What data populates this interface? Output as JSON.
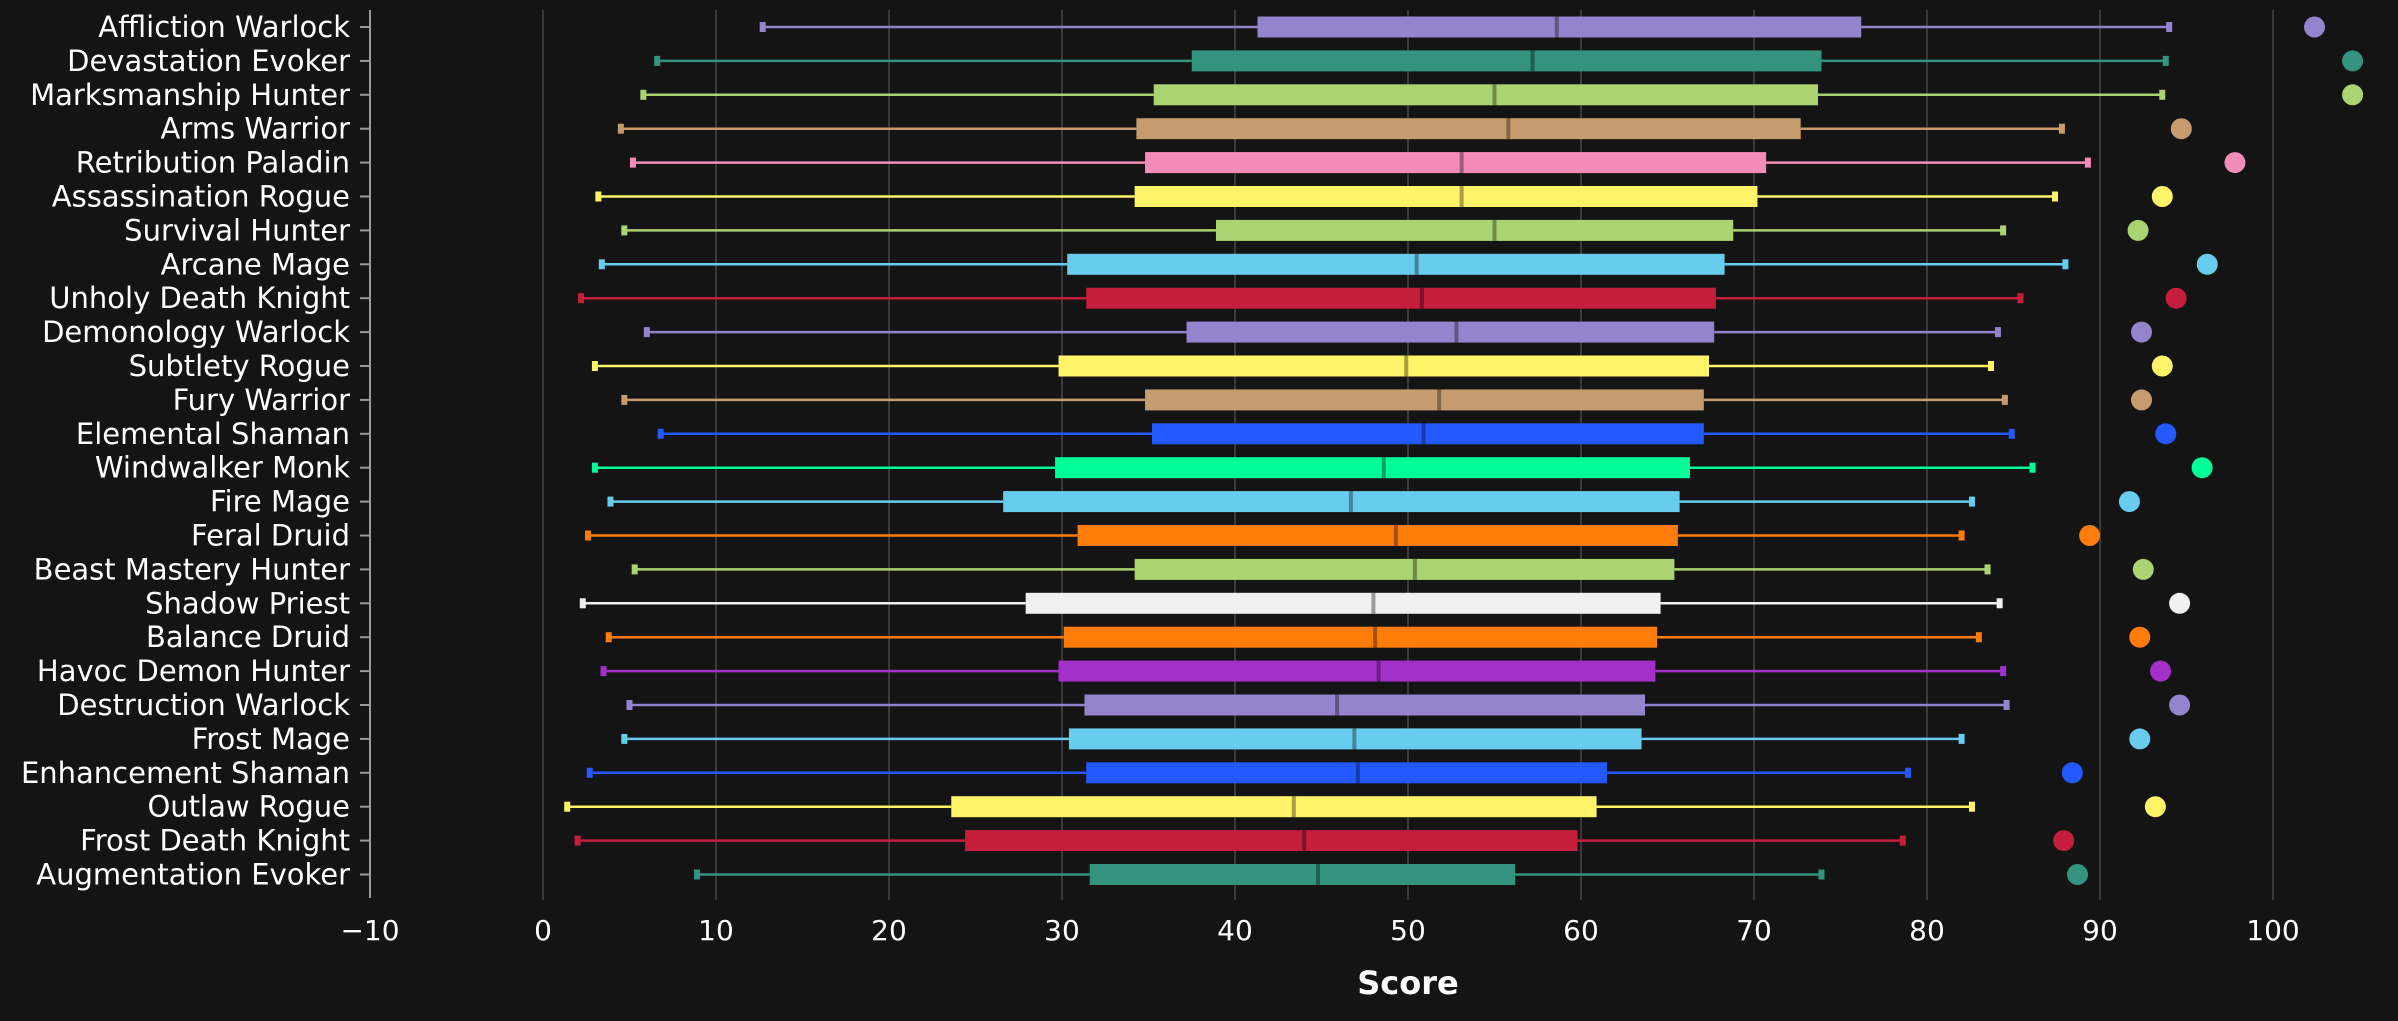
{
  "chart_data": {
    "type": "box",
    "orientation": "horizontal",
    "xlabel": "Score",
    "xlim": [
      -10,
      105
    ],
    "xticks": [
      -10,
      0,
      10,
      20,
      30,
      40,
      50,
      60,
      70,
      80,
      90,
      100
    ],
    "xtick_labels": [
      "−10",
      "0",
      "10",
      "20",
      "30",
      "40",
      "50",
      "60",
      "70",
      "80",
      "90",
      "100"
    ],
    "grid": true,
    "legend": "none",
    "series": [
      {
        "name": "Affliction Warlock",
        "color": "#9483cd",
        "min": 12.7,
        "q1": 41.3,
        "median": 58.6,
        "q3": 76.2,
        "max": 94.0,
        "outlier": 102.4
      },
      {
        "name": "Devastation Evoker",
        "color": "#33937f",
        "min": 6.6,
        "q1": 37.5,
        "median": 57.2,
        "q3": 73.9,
        "max": 93.8,
        "outlier": 104.6
      },
      {
        "name": "Marksmanship Hunter",
        "color": "#aad372",
        "min": 5.8,
        "q1": 35.3,
        "median": 55.0,
        "q3": 73.7,
        "max": 93.6,
        "outlier": 104.6
      },
      {
        "name": "Arms Warrior",
        "color": "#c69b6d",
        "min": 4.5,
        "q1": 34.3,
        "median": 55.8,
        "q3": 72.7,
        "max": 87.8,
        "outlier": 94.7
      },
      {
        "name": "Retribution Paladin",
        "color": "#f48cba",
        "min": 5.2,
        "q1": 34.8,
        "median": 53.1,
        "q3": 70.7,
        "max": 89.3,
        "outlier": 97.8
      },
      {
        "name": "Assassination Rogue",
        "color": "#fff468",
        "min": 3.2,
        "q1": 34.2,
        "median": 53.1,
        "q3": 70.2,
        "max": 87.4,
        "outlier": 93.6
      },
      {
        "name": "Survival Hunter",
        "color": "#aad372",
        "min": 4.7,
        "q1": 38.9,
        "median": 55.0,
        "q3": 68.8,
        "max": 84.4,
        "outlier": 92.2
      },
      {
        "name": "Arcane Mage",
        "color": "#68ccef",
        "min": 3.4,
        "q1": 30.3,
        "median": 50.5,
        "q3": 68.3,
        "max": 88.0,
        "outlier": 96.2
      },
      {
        "name": "Unholy Death Knight",
        "color": "#c41e3b",
        "min": 2.2,
        "q1": 31.4,
        "median": 50.8,
        "q3": 67.8,
        "max": 85.4,
        "outlier": 94.4
      },
      {
        "name": "Demonology Warlock",
        "color": "#9483cd",
        "min": 6.0,
        "q1": 37.2,
        "median": 52.8,
        "q3": 67.7,
        "max": 84.1,
        "outlier": 92.4
      },
      {
        "name": "Subtlety Rogue",
        "color": "#fff468",
        "min": 3.0,
        "q1": 29.8,
        "median": 49.9,
        "q3": 67.4,
        "max": 83.7,
        "outlier": 93.6
      },
      {
        "name": "Fury Warrior",
        "color": "#c69b6d",
        "min": 4.7,
        "q1": 34.8,
        "median": 51.8,
        "q3": 67.1,
        "max": 84.5,
        "outlier": 92.4
      },
      {
        "name": "Elemental Shaman",
        "color": "#2359ff",
        "min": 6.8,
        "q1": 35.2,
        "median": 50.9,
        "q3": 67.1,
        "max": 84.9,
        "outlier": 93.8
      },
      {
        "name": "Windwalker Monk",
        "color": "#00ff98",
        "min": 3.0,
        "q1": 29.6,
        "median": 48.6,
        "q3": 66.3,
        "max": 86.1,
        "outlier": 95.9
      },
      {
        "name": "Fire Mage",
        "color": "#68ccef",
        "min": 3.9,
        "q1": 26.6,
        "median": 46.7,
        "q3": 65.7,
        "max": 82.6,
        "outlier": 91.7
      },
      {
        "name": "Feral Druid",
        "color": "#ff7c0a",
        "min": 2.6,
        "q1": 30.9,
        "median": 49.3,
        "q3": 65.6,
        "max": 82.0,
        "outlier": 89.4
      },
      {
        "name": "Beast Mastery Hunter",
        "color": "#aad372",
        "min": 5.3,
        "q1": 34.2,
        "median": 50.4,
        "q3": 65.4,
        "max": 83.5,
        "outlier": 92.5
      },
      {
        "name": "Shadow Priest",
        "color": "#f0f0f0",
        "min": 2.3,
        "q1": 27.9,
        "median": 48.0,
        "q3": 64.6,
        "max": 84.2,
        "outlier": 94.6
      },
      {
        "name": "Balance Druid",
        "color": "#ff7c0a",
        "min": 3.8,
        "q1": 30.1,
        "median": 48.1,
        "q3": 64.4,
        "max": 83.0,
        "outlier": 92.3
      },
      {
        "name": "Havoc Demon Hunter",
        "color": "#a330c9",
        "min": 3.5,
        "q1": 29.8,
        "median": 48.3,
        "q3": 64.3,
        "max": 84.4,
        "outlier": 93.5
      },
      {
        "name": "Destruction Warlock",
        "color": "#9483cd",
        "min": 5.0,
        "q1": 31.3,
        "median": 45.9,
        "q3": 63.7,
        "max": 84.6,
        "outlier": 94.6
      },
      {
        "name": "Frost Mage",
        "color": "#68ccef",
        "min": 4.7,
        "q1": 30.4,
        "median": 46.9,
        "q3": 63.5,
        "max": 82.0,
        "outlier": 92.3
      },
      {
        "name": "Enhancement Shaman",
        "color": "#2359ff",
        "min": 2.7,
        "q1": 31.4,
        "median": 47.1,
        "q3": 61.5,
        "max": 78.9,
        "outlier": 88.4
      },
      {
        "name": "Outlaw Rogue",
        "color": "#fff468",
        "min": 1.4,
        "q1": 23.6,
        "median": 43.4,
        "q3": 60.9,
        "max": 82.6,
        "outlier": 93.2
      },
      {
        "name": "Frost Death Knight",
        "color": "#c41e3b",
        "min": 2.0,
        "q1": 24.4,
        "median": 44.0,
        "q3": 59.8,
        "max": 78.6,
        "outlier": 87.9
      },
      {
        "name": "Augmentation Evoker",
        "color": "#33937f",
        "min": 8.9,
        "q1": 31.6,
        "median": 44.8,
        "q3": 56.2,
        "max": 73.9,
        "outlier": 88.7
      }
    ]
  }
}
